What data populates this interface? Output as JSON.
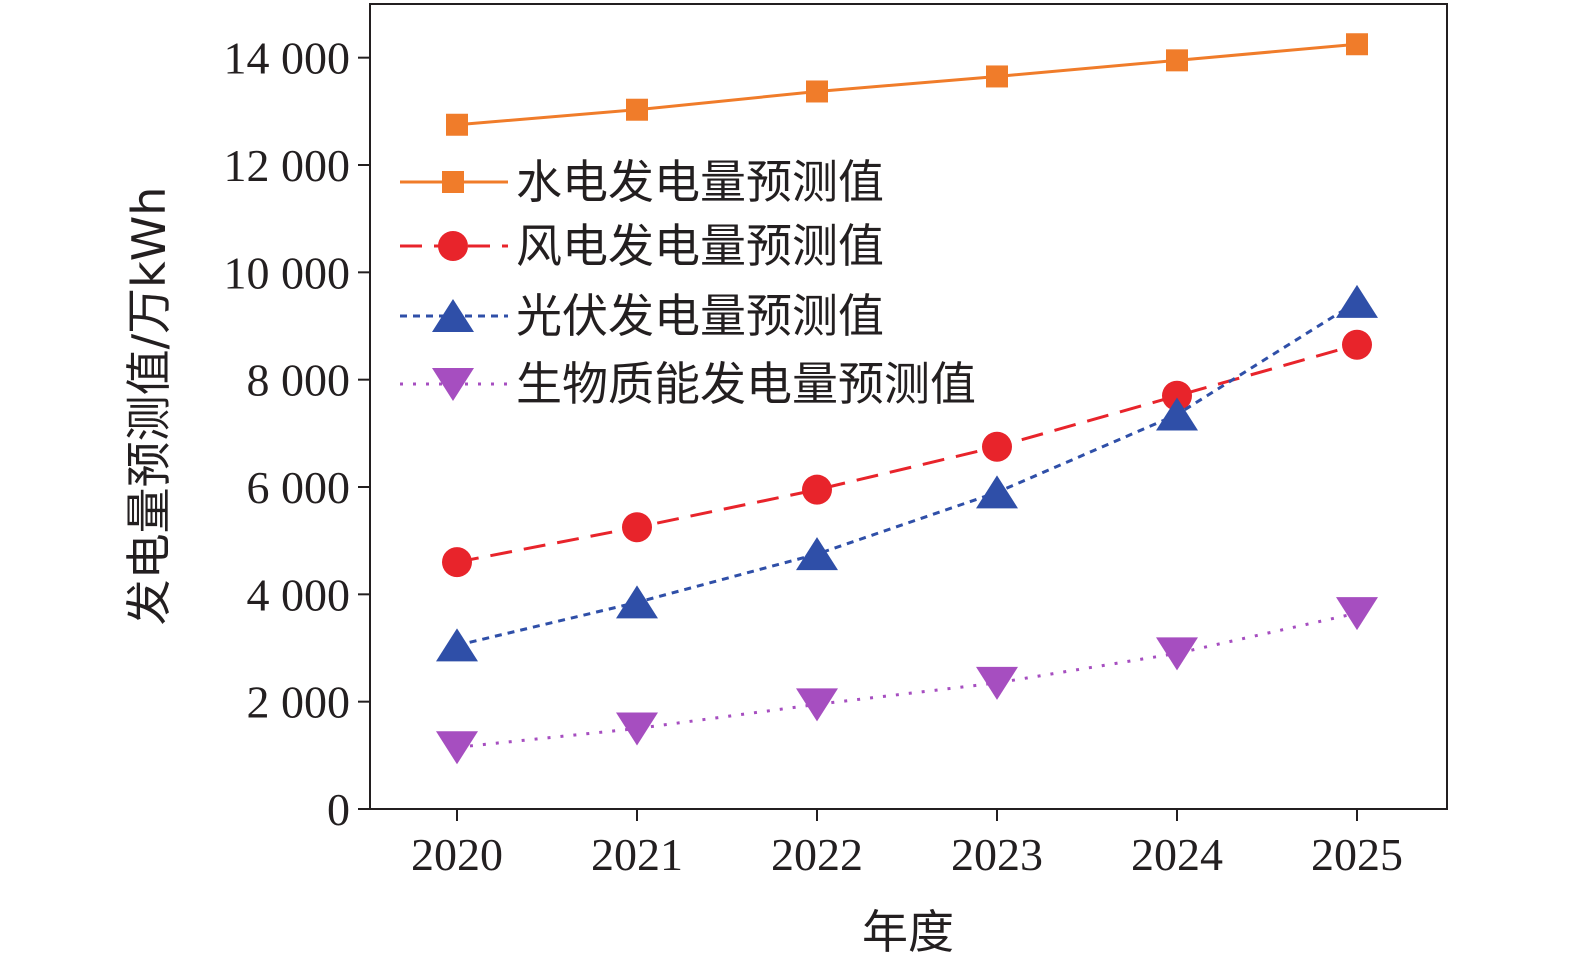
{
  "chart_data": {
    "type": "line",
    "x": [
      "2020",
      "2021",
      "2022",
      "2023",
      "2024",
      "2025"
    ],
    "xlabel": "年度",
    "ylabel": "发电量预测值/万kWh",
    "ylim": [
      0,
      15000
    ],
    "yticks": [
      0,
      2000,
      4000,
      6000,
      8000,
      10000,
      12000,
      14000
    ],
    "ytick_labels": [
      "0",
      "2 000",
      "4 000",
      "6 000",
      "8 000",
      "10 000",
      "12 000",
      "14 000"
    ],
    "grid": false,
    "legend_position": "center-left",
    "series": [
      {
        "name": "水电发电量预测值",
        "values": [
          12750,
          13030,
          13370,
          13650,
          13950,
          14250
        ],
        "color": "#f07c2a",
        "marker": "square",
        "line": "solid"
      },
      {
        "name": "风电发电量预测值",
        "values": [
          4600,
          5250,
          5950,
          6750,
          7700,
          8650
        ],
        "color": "#e8242b",
        "marker": "circle",
        "line": "dashed"
      },
      {
        "name": "光伏发电量预测值",
        "values": [
          3050,
          3850,
          4750,
          5900,
          7350,
          9450
        ],
        "color": "#2f4fa8",
        "marker": "triangle-up",
        "line": "dotted"
      },
      {
        "name": "生物质能发电量预测值",
        "values": [
          1150,
          1500,
          1950,
          2350,
          2900,
          3650
        ],
        "color": "#a64ec0",
        "marker": "triangle-down",
        "line": "dotted"
      }
    ]
  }
}
